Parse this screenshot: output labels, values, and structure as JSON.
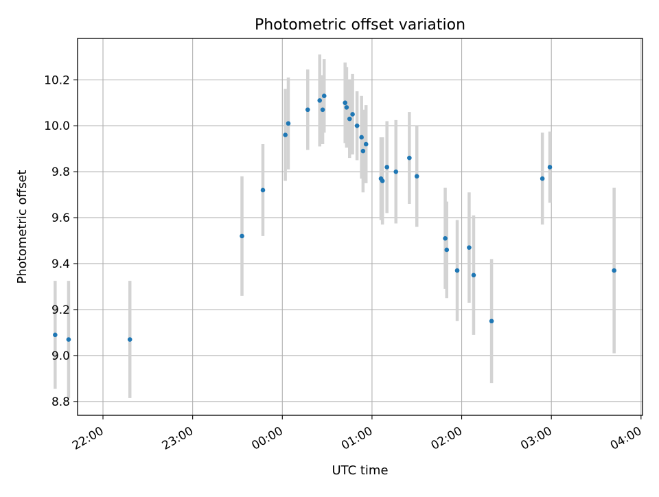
{
  "chart_data": {
    "type": "scatter",
    "title": "Photometric offset variation",
    "xlabel": "UTC time",
    "ylabel": "Photometric offset",
    "x_unit": "minutes relative to 00:00 UTC",
    "xlim": [
      -137,
      241
    ],
    "ylim": [
      8.74,
      10.38
    ],
    "x_ticks": [
      {
        "value": -120,
        "label": "22:00"
      },
      {
        "value": -60,
        "label": "23:00"
      },
      {
        "value": 0,
        "label": "00:00"
      },
      {
        "value": 60,
        "label": "01:00"
      },
      {
        "value": 120,
        "label": "02:00"
      },
      {
        "value": 180,
        "label": "03:00"
      },
      {
        "value": 240,
        "label": "04:00"
      }
    ],
    "y_ticks": [
      {
        "value": 8.8,
        "label": "8.8"
      },
      {
        "value": 9.0,
        "label": "9.0"
      },
      {
        "value": 9.2,
        "label": "9.2"
      },
      {
        "value": 9.4,
        "label": "9.4"
      },
      {
        "value": 9.6,
        "label": "9.6"
      },
      {
        "value": 9.8,
        "label": "9.8"
      },
      {
        "value": 10.0,
        "label": "10.0"
      },
      {
        "value": 10.2,
        "label": "10.2"
      }
    ],
    "grid": true,
    "marker_color": "#1f77b4",
    "errorbar_color": "#d3d3d3",
    "points": [
      {
        "x": -152,
        "y": 9.09,
        "err": 0.235
      },
      {
        "x": -143,
        "y": 9.07,
        "err": 0.255
      },
      {
        "x": -102,
        "y": 9.07,
        "err": 0.255
      },
      {
        "x": -27,
        "y": 9.52,
        "err": 0.26
      },
      {
        "x": -13,
        "y": 9.72,
        "err": 0.2
      },
      {
        "x": 2,
        "y": 9.96,
        "err": 0.2
      },
      {
        "x": 4,
        "y": 10.01,
        "err": 0.2
      },
      {
        "x": 17,
        "y": 10.07,
        "err": 0.175
      },
      {
        "x": 25,
        "y": 10.11,
        "err": 0.2
      },
      {
        "x": 27,
        "y": 10.07,
        "err": 0.15
      },
      {
        "x": 28,
        "y": 10.13,
        "err": 0.16
      },
      {
        "x": 42,
        "y": 10.1,
        "err": 0.175
      },
      {
        "x": 43,
        "y": 10.08,
        "err": 0.175
      },
      {
        "x": 45,
        "y": 10.03,
        "err": 0.17
      },
      {
        "x": 47,
        "y": 10.05,
        "err": 0.175
      },
      {
        "x": 50,
        "y": 10.0,
        "err": 0.15
      },
      {
        "x": 53,
        "y": 9.95,
        "err": 0.18
      },
      {
        "x": 54,
        "y": 9.89,
        "err": 0.18
      },
      {
        "x": 56,
        "y": 9.92,
        "err": 0.17
      },
      {
        "x": 66,
        "y": 9.77,
        "err": 0.18
      },
      {
        "x": 67,
        "y": 9.76,
        "err": 0.19
      },
      {
        "x": 70,
        "y": 9.82,
        "err": 0.2
      },
      {
        "x": 76,
        "y": 9.8,
        "err": 0.225
      },
      {
        "x": 85,
        "y": 9.86,
        "err": 0.2
      },
      {
        "x": 90,
        "y": 9.78,
        "err": 0.22
      },
      {
        "x": 109,
        "y": 9.51,
        "err": 0.22
      },
      {
        "x": 110,
        "y": 9.46,
        "err": 0.21
      },
      {
        "x": 117,
        "y": 9.37,
        "err": 0.22
      },
      {
        "x": 125,
        "y": 9.47,
        "err": 0.24
      },
      {
        "x": 128,
        "y": 9.35,
        "err": 0.26
      },
      {
        "x": 140,
        "y": 9.15,
        "err": 0.27
      },
      {
        "x": 174,
        "y": 9.77,
        "err": 0.2
      },
      {
        "x": 179,
        "y": 9.82,
        "err": 0.155
      },
      {
        "x": 222,
        "y": 9.37,
        "err": 0.36
      }
    ]
  }
}
